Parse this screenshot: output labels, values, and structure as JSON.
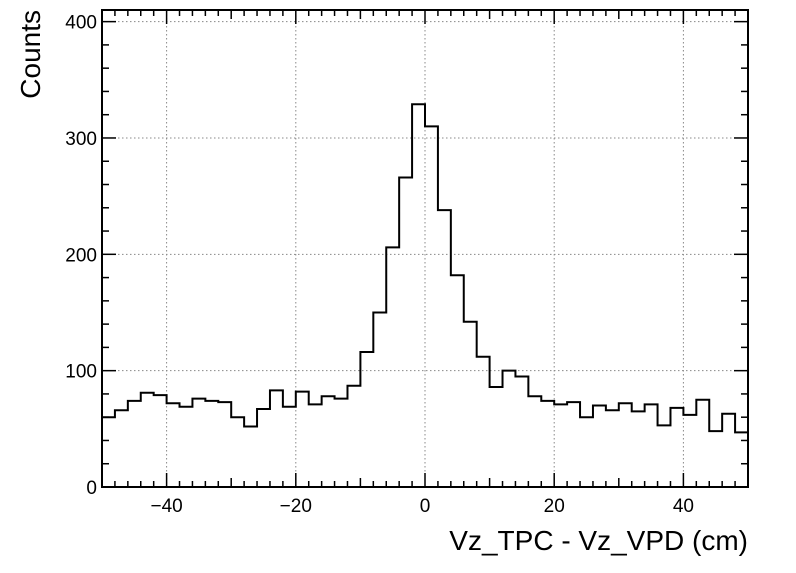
{
  "chart_data": {
    "type": "bar",
    "title": "",
    "xlabel": "Vz_TPC - Vz_VPD (cm)",
    "ylabel": "Counts",
    "xlim": [
      -50,
      50
    ],
    "ylim": [
      0,
      410
    ],
    "bin_width": 2,
    "x_ticks": [
      -40,
      -20,
      0,
      20,
      40
    ],
    "x_tick_labels": [
      "−40",
      "−20",
      "0",
      "20",
      "40"
    ],
    "y_ticks": [
      0,
      100,
      200,
      300,
      400
    ],
    "y_tick_labels": [
      "0",
      "100",
      "200",
      "300",
      "400"
    ],
    "grid": true,
    "line_color": "#000000",
    "x": [
      -49,
      -47,
      -45,
      -43,
      -41,
      -39,
      -37,
      -35,
      -33,
      -31,
      -29,
      -27,
      -25,
      -23,
      -21,
      -19,
      -17,
      -15,
      -13,
      -11,
      -9,
      -7,
      -5,
      -3,
      -1,
      1,
      3,
      5,
      7,
      9,
      11,
      13,
      15,
      17,
      19,
      21,
      23,
      25,
      27,
      29,
      31,
      33,
      35,
      37,
      39,
      41,
      43,
      45,
      47,
      49
    ],
    "values": [
      60,
      66,
      74,
      81,
      79,
      72,
      69,
      76,
      74,
      73,
      60,
      52,
      67,
      83,
      69,
      82,
      71,
      78,
      76,
      87,
      116,
      150,
      206,
      266,
      329,
      310,
      238,
      182,
      142,
      112,
      86,
      100,
      95,
      78,
      74,
      71,
      73,
      60,
      70,
      66,
      72,
      65,
      71,
      53,
      68,
      62,
      75,
      48,
      63,
      47
    ]
  }
}
